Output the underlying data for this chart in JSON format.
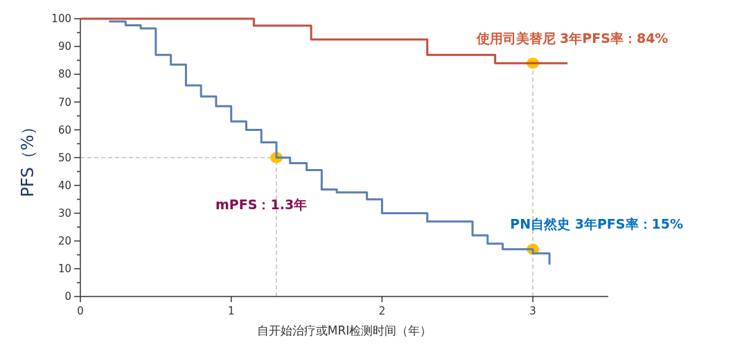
{
  "chart_data": {
    "type": "step",
    "xlabel": "自开始治疗或MRI检测时间（年）",
    "ylabel": "PFS（%）",
    "xlim": [
      0,
      3.5
    ],
    "xticks": [
      0,
      1,
      2,
      3
    ],
    "ylim": [
      0,
      100
    ],
    "yticks": [
      0,
      {
        "value": 5,
        "label": null
      },
      10,
      {
        "value": 15,
        "label": null
      },
      20,
      {
        "value": 25,
        "label": null
      },
      30,
      {
        "value": 35,
        "label": null
      },
      40,
      {
        "value": 45,
        "label": null
      },
      50,
      {
        "value": 55,
        "label": null
      },
      60,
      {
        "value": 65,
        "label": null
      },
      70,
      {
        "value": 75,
        "label": null
      },
      80,
      {
        "value": 85,
        "label": null
      },
      90,
      {
        "value": 95,
        "label": null
      },
      100
    ],
    "grid": false,
    "series": [
      {
        "color": "#c0503c",
        "x": [
          0,
          1.15,
          1.53,
          2.3,
          2.75,
          3.23
        ],
        "values": [
          100,
          97.5,
          92.5,
          87,
          84,
          84
        ]
      },
      {
        "color": "#5b7fb5",
        "x": [
          0.19,
          0.3,
          0.4,
          0.5,
          0.6,
          0.7,
          0.8,
          0.9,
          1.0,
          1.1,
          1.2,
          1.3,
          1.39,
          1.5,
          1.6,
          1.7,
          1.9,
          2.0,
          2.3,
          2.6,
          2.7,
          2.8,
          3.0,
          3.11,
          3.11
        ],
        "values": [
          99,
          97.6,
          96.5,
          87,
          83.5,
          76,
          72,
          68.5,
          63,
          60,
          55.5,
          50,
          48,
          45.5,
          38.5,
          37.5,
          35,
          30,
          27,
          22,
          19,
          17,
          15.5,
          15.5,
          11.5
        ]
      },
      {
        "type": "scatter",
        "color": "#ffc000",
        "marker": "circle",
        "x": [
          1.3,
          3,
          3
        ],
        "values": [
          50,
          84,
          17
        ]
      }
    ],
    "ref_lines": [
      {
        "axis": "x",
        "value": 1.3,
        "color": "#bfbfbf",
        "line_style": "dashed"
      },
      {
        "axis": "y",
        "value": 50,
        "color": "#bfbfbf",
        "line_style": "dashed"
      },
      {
        "axis": "x",
        "value": 3,
        "color": "#bfbfbf",
        "line_style": "dashed"
      }
    ],
    "annotations": [
      "使用司美替尼  3年PFS率：84%",
      "mPFS：1.3年",
      "PN自然史  3年PFS率：15%"
    ]
  }
}
